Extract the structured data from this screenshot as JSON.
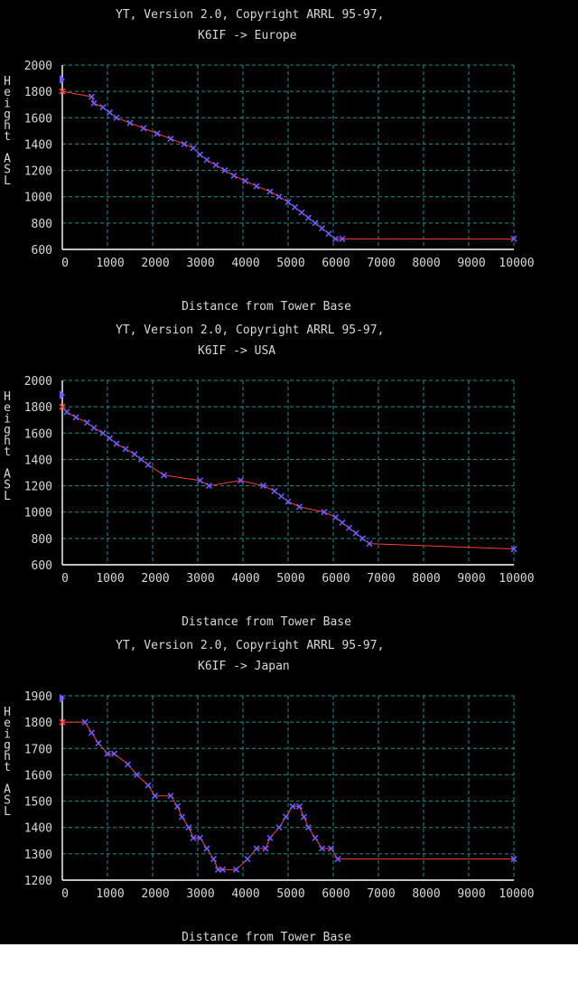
{
  "chart_data": [
    {
      "type": "line",
      "title": "YT, Version 2.0, Copyright ARRL 95-97,",
      "subtitle": "K6IF -> Europe",
      "xlabel": "Distance from Tower Base",
      "ylabel": "Height ASL",
      "xlim": [
        0,
        10000
      ],
      "ylim": [
        600,
        2000
      ],
      "xticks": [
        "0",
        "1000",
        "2000",
        "3000",
        "4000",
        "5000",
        "6000",
        "7000",
        "8000",
        "9000",
        "10000"
      ],
      "yticks": [
        "600",
        "800",
        "1000",
        "1200",
        "1400",
        "1600",
        "1800",
        "2000"
      ],
      "grid": true,
      "antenna_height": 1890,
      "base_height": 1800,
      "x": [
        0,
        650,
        700,
        900,
        1050,
        1200,
        1500,
        1800,
        2100,
        2400,
        2700,
        2900,
        3050,
        3200,
        3400,
        3600,
        3800,
        4050,
        4300,
        4600,
        4800,
        5000,
        5150,
        5300,
        5450,
        5600,
        5750,
        5900,
        6050,
        6200,
        10000
      ],
      "values": [
        1800,
        1760,
        1710,
        1680,
        1640,
        1600,
        1560,
        1520,
        1480,
        1440,
        1400,
        1370,
        1320,
        1280,
        1240,
        1200,
        1160,
        1120,
        1080,
        1040,
        1000,
        960,
        920,
        880,
        840,
        800,
        760,
        720,
        680,
        680,
        680
      ]
    },
    {
      "type": "line",
      "title": "YT, Version 2.0, Copyright ARRL 95-97,",
      "subtitle": "K6IF -> USA",
      "xlabel": "Distance from Tower Base",
      "ylabel": "Height ASL",
      "xlim": [
        0,
        10000
      ],
      "ylim": [
        600,
        2000
      ],
      "xticks": [
        "0",
        "1000",
        "2000",
        "3000",
        "4000",
        "5000",
        "6000",
        "7000",
        "8000",
        "9000",
        "10000"
      ],
      "yticks": [
        "600",
        "800",
        "1000",
        "1200",
        "1400",
        "1600",
        "1800",
        "2000"
      ],
      "grid": true,
      "antenna_height": 1890,
      "base_height": 1800,
      "x": [
        0,
        100,
        300,
        550,
        700,
        900,
        1050,
        1200,
        1400,
        1600,
        1750,
        1900,
        2250,
        3050,
        3250,
        3950,
        4450,
        4700,
        4850,
        5000,
        5250,
        5800,
        6050,
        6200,
        6350,
        6500,
        6650,
        6800,
        10000
      ],
      "values": [
        1800,
        1760,
        1720,
        1680,
        1640,
        1600,
        1560,
        1520,
        1480,
        1440,
        1400,
        1360,
        1280,
        1240,
        1200,
        1240,
        1200,
        1160,
        1120,
        1080,
        1040,
        1000,
        960,
        920,
        880,
        840,
        800,
        760,
        720
      ]
    },
    {
      "type": "line",
      "title": "YT, Version 2.0, Copyright ARRL 95-97,",
      "subtitle": "K6IF -> Japan",
      "xlabel": "Distance from Tower Base",
      "ylabel": "Height ASL",
      "xlim": [
        0,
        10000
      ],
      "ylim": [
        1200,
        1900
      ],
      "xticks": [
        "0",
        "1000",
        "2000",
        "3000",
        "4000",
        "5000",
        "6000",
        "7000",
        "8000",
        "9000",
        "10000"
      ],
      "yticks": [
        "1200",
        "1300",
        "1400",
        "1500",
        "1600",
        "1700",
        "1800",
        "1900"
      ],
      "grid": true,
      "antenna_height": 1890,
      "base_height": 1800,
      "x": [
        0,
        500,
        650,
        800,
        1000,
        1150,
        1450,
        1650,
        1900,
        2050,
        2400,
        2550,
        2650,
        2800,
        2900,
        3050,
        3200,
        3350,
        3450,
        3550,
        3850,
        4100,
        4300,
        4500,
        4600,
        4800,
        4950,
        5100,
        5250,
        5350,
        5450,
        5600,
        5750,
        5950,
        6100,
        10000
      ],
      "values": [
        1800,
        1800,
        1760,
        1720,
        1680,
        1680,
        1640,
        1600,
        1560,
        1520,
        1520,
        1480,
        1440,
        1400,
        1360,
        1360,
        1320,
        1280,
        1240,
        1240,
        1240,
        1280,
        1320,
        1320,
        1360,
        1400,
        1440,
        1480,
        1480,
        1440,
        1400,
        1360,
        1320,
        1320,
        1280,
        1280
      ]
    }
  ]
}
